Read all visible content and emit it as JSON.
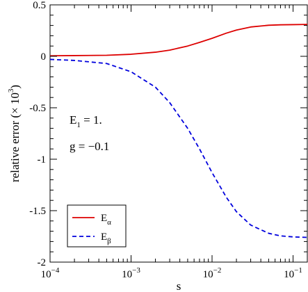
{
  "chart_data": {
    "type": "line",
    "xlabel": "s",
    "ylabel": {
      "main": "relative error (",
      "times": "× 10",
      "exp": "3",
      "close": ")"
    },
    "xscale": "log",
    "xlim": [
      0.0001,
      0.15
    ],
    "ylim": [
      -2,
      0.5
    ],
    "x_ticks": [
      {
        "value": 0.0001,
        "base": "10",
        "exp": "−4"
      },
      {
        "value": 0.001,
        "base": "10",
        "exp": "−3"
      },
      {
        "value": 0.01,
        "base": "10",
        "exp": "−2"
      },
      {
        "value": 0.1,
        "base": "10",
        "exp": "−1"
      }
    ],
    "y_ticks": [
      {
        "value": 0.5,
        "label": "0.5"
      },
      {
        "value": 0,
        "label": "0"
      },
      {
        "value": -0.5,
        "label": "-0.5"
      },
      {
        "value": -1,
        "label": "-1"
      },
      {
        "value": -1.5,
        "label": "-1.5"
      },
      {
        "value": -2,
        "label": "-2"
      }
    ],
    "y_minor_step": 0.1,
    "grid": false,
    "legend_position": "bottom-left",
    "annotations": [
      {
        "base": "E",
        "sub": "1",
        "rest": " = 1."
      },
      {
        "base": "g = −0.1",
        "sub": "",
        "rest": ""
      }
    ],
    "series": [
      {
        "name": "E",
        "name_sub": "α",
        "color": "#dd0000",
        "dash": "solid",
        "x": [
          0.0001,
          0.0002,
          0.0005,
          0.001,
          0.002,
          0.003,
          0.005,
          0.007,
          0.01,
          0.015,
          0.02,
          0.03,
          0.05,
          0.07,
          0.1,
          0.15
        ],
        "y": [
          0.005,
          0.007,
          0.01,
          0.02,
          0.04,
          0.06,
          0.1,
          0.135,
          0.175,
          0.225,
          0.255,
          0.285,
          0.302,
          0.306,
          0.308,
          0.31
        ]
      },
      {
        "name": "E",
        "name_sub": "β",
        "color": "#0000dd",
        "dash": "dashed",
        "x": [
          0.0001,
          0.0002,
          0.0005,
          0.001,
          0.002,
          0.003,
          0.005,
          0.007,
          0.01,
          0.015,
          0.02,
          0.03,
          0.05,
          0.07,
          0.1,
          0.15
        ],
        "y": [
          -0.03,
          -0.04,
          -0.07,
          -0.15,
          -0.3,
          -0.45,
          -0.7,
          -0.9,
          -1.13,
          -1.37,
          -1.51,
          -1.64,
          -1.72,
          -1.745,
          -1.755,
          -1.76
        ]
      }
    ]
  }
}
